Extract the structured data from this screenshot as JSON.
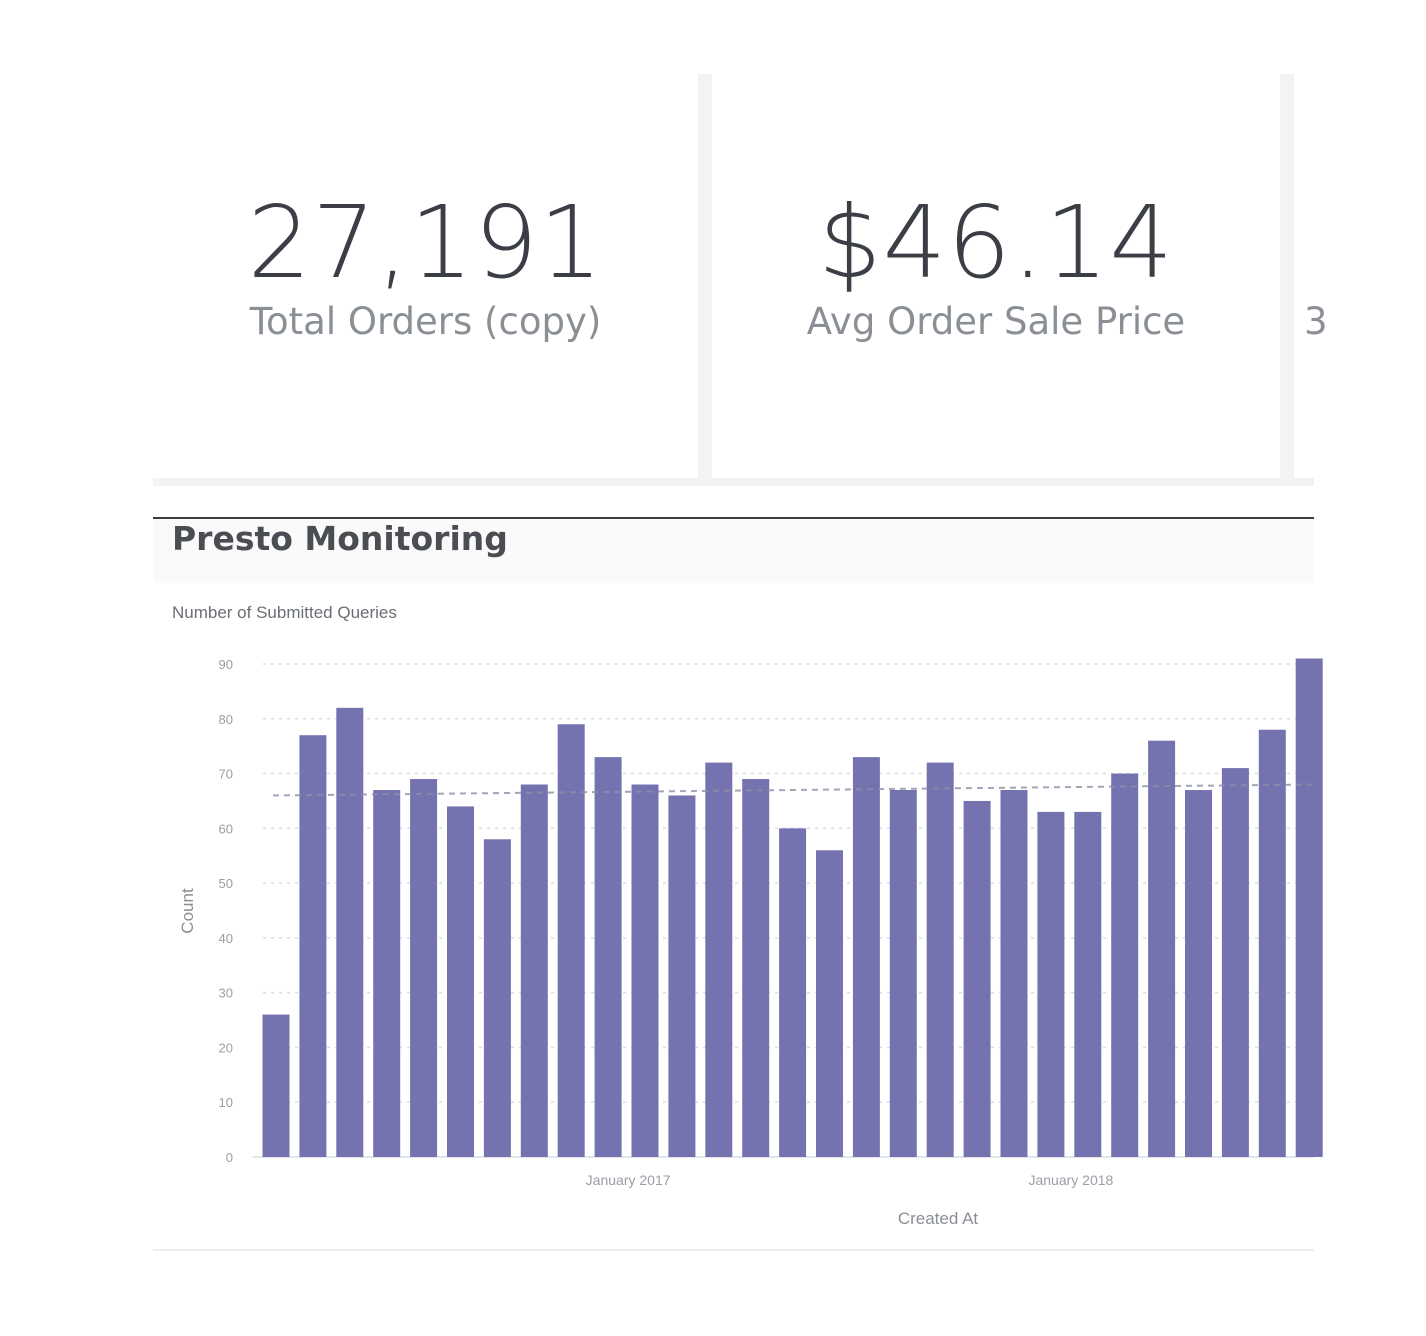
{
  "metrics": [
    {
      "value": "27,191",
      "label": "Total Orders (copy)"
    },
    {
      "value": "$46.14",
      "label": "Avg Order Sale Price"
    },
    {
      "value": "",
      "label": "3"
    }
  ],
  "chart_card": {
    "title": "Presto Monitoring",
    "subtitle": "Number of Submitted Queries"
  },
  "chart_data": {
    "type": "bar",
    "title": "Number of Submitted Queries",
    "xlabel": "Created At",
    "ylabel": "Count",
    "ylim": [
      0,
      90
    ],
    "yticks": [
      0,
      10,
      20,
      30,
      40,
      50,
      60,
      70,
      80,
      90
    ],
    "xtick_labels": [
      {
        "label": "January 2017",
        "at_index": 9
      },
      {
        "label": "January 2018",
        "at_index": 21
      }
    ],
    "values": [
      26,
      77,
      82,
      67,
      69,
      64,
      58,
      68,
      79,
      73,
      68,
      66,
      72,
      69,
      60,
      56,
      73,
      67,
      72,
      65,
      67,
      63,
      63,
      70,
      76,
      67,
      71,
      78,
      91
    ],
    "reference_line": {
      "style": "dashed",
      "from": 66,
      "to": 68
    },
    "grid": true,
    "bar_color": "#7473b0"
  }
}
